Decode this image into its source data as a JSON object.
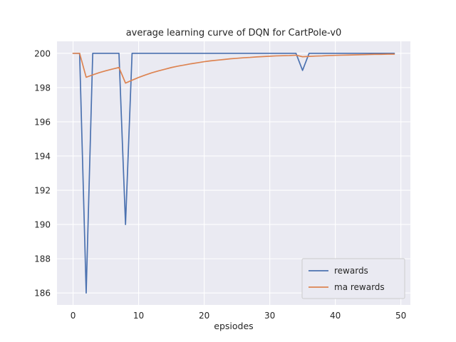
{
  "chart_data": {
    "type": "line",
    "title": "average learning curve of DQN for CartPole-v0",
    "xlabel": "epsiodes",
    "ylabel": "",
    "x": [
      0,
      1,
      2,
      3,
      4,
      5,
      6,
      7,
      8,
      9,
      10,
      11,
      12,
      13,
      14,
      15,
      16,
      17,
      18,
      19,
      20,
      21,
      22,
      23,
      24,
      25,
      26,
      27,
      28,
      29,
      30,
      31,
      32,
      33,
      34,
      35,
      36,
      37,
      38,
      39,
      40,
      41,
      42,
      43,
      44,
      45,
      46,
      47,
      48,
      49
    ],
    "series": [
      {
        "name": "rewards",
        "color": "#4c72b0",
        "values": [
          200,
          200,
          186,
          200,
          200,
          200,
          200,
          200,
          190,
          200,
          200,
          200,
          200,
          200,
          200,
          200,
          200,
          200,
          200,
          200,
          200,
          200,
          200,
          200,
          200,
          200,
          200,
          200,
          200,
          200,
          200,
          200,
          200,
          200,
          200,
          199,
          200,
          200,
          200,
          200,
          200,
          200,
          200,
          200,
          200,
          200,
          200,
          200,
          200,
          200
        ]
      },
      {
        "name": "ma rewards",
        "color": "#dd8452",
        "values": [
          200,
          200,
          198.6,
          198.74,
          198.87,
          198.98,
          199.08,
          199.17,
          198.26,
          198.43,
          198.59,
          198.73,
          198.86,
          198.97,
          199.07,
          199.17,
          199.25,
          199.32,
          199.39,
          199.45,
          199.51,
          199.56,
          199.6,
          199.64,
          199.68,
          199.71,
          199.74,
          199.76,
          199.79,
          199.81,
          199.83,
          199.85,
          199.86,
          199.87,
          199.89,
          199.8,
          199.82,
          199.84,
          199.85,
          199.87,
          199.88,
          199.89,
          199.9,
          199.91,
          199.92,
          199.93,
          199.94,
          199.94,
          199.95,
          199.95
        ]
      }
    ],
    "xticks": [
      0,
      10,
      20,
      30,
      40,
      50
    ],
    "yticks": [
      186,
      188,
      190,
      192,
      194,
      196,
      198,
      200
    ],
    "xlim": [
      -2.45,
      51.45
    ],
    "ylim": [
      185.3,
      200.7
    ],
    "grid": true,
    "legend_position": "lower right",
    "plot_bg": "#eaeaf2",
    "grid_color": "#ffffff",
    "text_color": "#262626"
  }
}
